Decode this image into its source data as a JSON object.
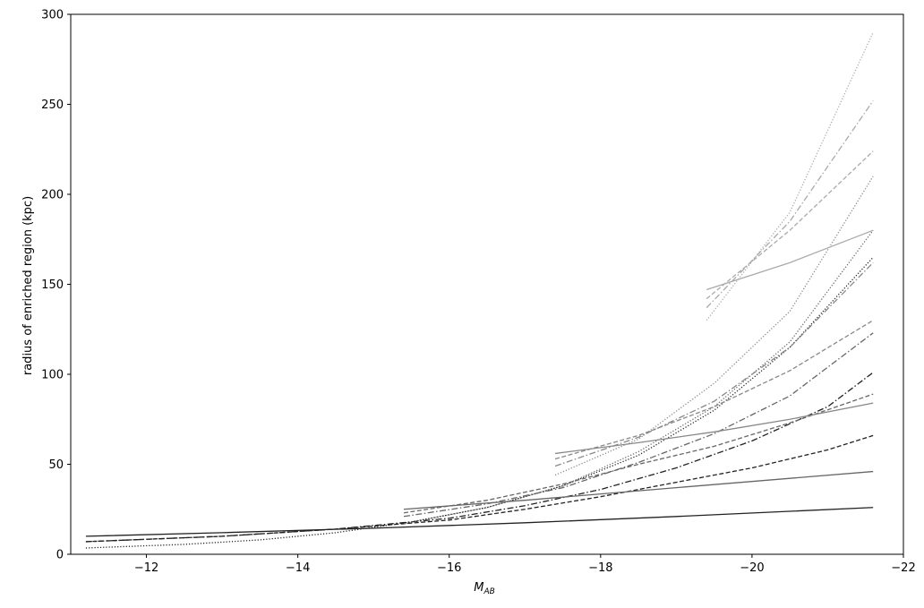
{
  "chart_data": {
    "type": "line",
    "title": "",
    "xlabel": "M",
    "xlabel_sub": "AB",
    "ylabel": "radius of enriched region (kpc)",
    "xlim": [
      -11,
      -22
    ],
    "ylim": [
      0,
      300
    ],
    "x_ticks": [
      -12,
      -14,
      -16,
      -18,
      -20,
      -22
    ],
    "x_tick_labels": [
      "−12",
      "−14",
      "−16",
      "−18",
      "−20",
      "−22"
    ],
    "y_ticks": [
      0,
      50,
      100,
      150,
      200,
      250,
      300
    ],
    "y_tick_labels": [
      "0",
      "50",
      "100",
      "150",
      "200",
      "250",
      "300"
    ],
    "grid": false,
    "series": [
      {
        "color": "#222222",
        "dash": "solid",
        "x": [
          -11.2,
          -13,
          -15,
          -17,
          -19,
          -21.6
        ],
        "y": [
          10,
          12,
          14.5,
          17.5,
          21,
          26
        ]
      },
      {
        "color": "#222222",
        "dash": "dashdot",
        "x": [
          -11.2,
          -13,
          -14.5,
          -16,
          -17,
          -18,
          -19,
          -20,
          -21,
          -21.6
        ],
        "y": [
          7,
          10,
          14,
          20,
          27,
          36,
          48,
          63,
          82,
          101
        ]
      },
      {
        "color": "#222222",
        "dash": "dashed",
        "x": [
          -11.2,
          -13,
          -14.5,
          -16,
          -17,
          -18,
          -19,
          -20,
          -21,
          -21.6
        ],
        "y": [
          7,
          10,
          14,
          19,
          25,
          32,
          40,
          48,
          58,
          66
        ]
      },
      {
        "color": "#222222",
        "dash": "dotted",
        "x": [
          -11.2,
          -12.5,
          -13.5,
          -14.5,
          -15.5,
          -16.5,
          -17.5,
          -18.5,
          -19.5,
          -20.5,
          -21.6
        ],
        "y": [
          3.5,
          5.5,
          8,
          12,
          18,
          26,
          38,
          55,
          80,
          115,
          165
        ]
      },
      {
        "color": "#666666",
        "dash": "solid",
        "x": [
          -15.4,
          -17,
          -19,
          -21.6
        ],
        "y": [
          25,
          30,
          37,
          46
        ]
      },
      {
        "color": "#666666",
        "dash": "dashdot",
        "x": [
          -15.4,
          -16.5,
          -17.5,
          -18.5,
          -19.5,
          -20.5,
          -21.6
        ],
        "y": [
          21,
          28,
          37,
          51,
          67,
          88,
          123
        ]
      },
      {
        "color": "#666666",
        "dash": "dashed",
        "x": [
          -15.4,
          -16.5,
          -17.5,
          -18.5,
          -19.5,
          -20.5,
          -21.6
        ],
        "y": [
          23,
          30,
          39,
          50,
          60,
          73,
          89
        ]
      },
      {
        "color": "#666666",
        "dash": "dotted",
        "x": [
          -15.4,
          -16.5,
          -17.5,
          -18.5,
          -19.5,
          -20.5,
          -21.6
        ],
        "y": [
          17,
          26,
          38,
          57,
          82,
          118,
          180
        ]
      },
      {
        "color": "#888888",
        "dash": "solid",
        "x": [
          -17.4,
          -18.5,
          -19.5,
          -20.5,
          -21.6
        ],
        "y": [
          56,
          62,
          68,
          75,
          84
        ]
      },
      {
        "color": "#888888",
        "dash": "dashdot",
        "x": [
          -17.4,
          -18.5,
          -19.5,
          -20.5,
          -21.6
        ],
        "y": [
          49,
          65,
          85,
          115,
          162
        ]
      },
      {
        "color": "#888888",
        "dash": "dashed",
        "x": [
          -17.4,
          -18.5,
          -19.5,
          -20.5,
          -21.6
        ],
        "y": [
          53,
          66,
          82,
          102,
          130
        ]
      },
      {
        "color": "#888888",
        "dash": "dotted",
        "x": [
          -17.4,
          -18.5,
          -19.5,
          -20.5,
          -21.6
        ],
        "y": [
          44,
          64,
          95,
          135,
          210
        ]
      },
      {
        "color": "#aaaaaa",
        "dash": "solid",
        "x": [
          -19.4,
          -20.5,
          -21.6
        ],
        "y": [
          147,
          162,
          180
        ]
      },
      {
        "color": "#aaaaaa",
        "dash": "dashdot",
        "x": [
          -19.4,
          -20.5,
          -21.6
        ],
        "y": [
          137,
          185,
          252
        ]
      },
      {
        "color": "#aaaaaa",
        "dash": "dashed",
        "x": [
          -19.4,
          -20.5,
          -21.6
        ],
        "y": [
          142,
          180,
          224
        ]
      },
      {
        "color": "#aaaaaa",
        "dash": "dotted",
        "x": [
          -19.4,
          -20.5,
          -21.6
        ],
        "y": [
          130,
          190,
          290
        ]
      }
    ]
  }
}
